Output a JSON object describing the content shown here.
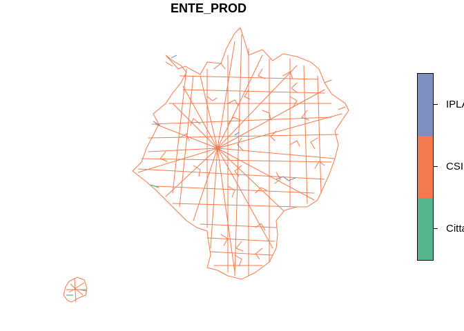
{
  "title": "ENTE_PROD",
  "legend": {
    "entries": [
      {
        "label": "IPLA",
        "color": "#7f8fc0"
      },
      {
        "label": "CSI",
        "color": "#f4794c"
      },
      {
        "label": "Citta",
        "color": "#55b48b"
      }
    ]
  },
  "colors": {
    "main_network": "#f4794c",
    "minor_ipla": "#7f8fc0",
    "minor_citta": "#55b48b"
  }
}
